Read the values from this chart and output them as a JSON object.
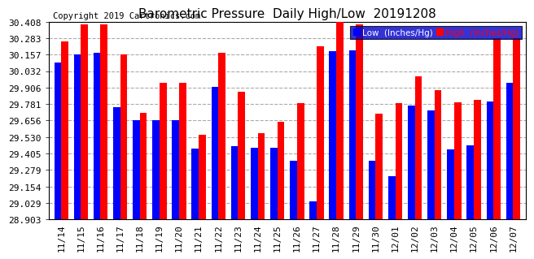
{
  "title": "Barometric Pressure  Daily High/Low  20191208",
  "copyright": "Copyright 2019 Cartronics.com",
  "dates": [
    "11/14",
    "11/15",
    "11/16",
    "11/17",
    "11/18",
    "11/19",
    "11/20",
    "11/21",
    "11/22",
    "11/23",
    "11/24",
    "11/25",
    "11/26",
    "11/27",
    "11/28",
    "11/29",
    "11/30",
    "12/01",
    "12/02",
    "12/03",
    "12/04",
    "12/05",
    "12/06",
    "12/07"
  ],
  "low": [
    30.1,
    30.16,
    30.17,
    29.76,
    29.66,
    29.66,
    29.66,
    29.44,
    29.91,
    29.46,
    29.45,
    29.45,
    29.35,
    29.04,
    30.185,
    30.19,
    29.35,
    29.23,
    29.77,
    29.73,
    29.435,
    29.465,
    29.8,
    29.945
  ],
  "high": [
    30.26,
    30.39,
    30.385,
    30.16,
    29.715,
    29.94,
    29.945,
    29.545,
    30.17,
    29.875,
    29.56,
    29.645,
    29.79,
    30.22,
    30.44,
    30.385,
    29.705,
    29.79,
    29.995,
    29.89,
    29.795,
    29.81,
    30.285,
    30.285
  ],
  "ylim": [
    28.903,
    30.408
  ],
  "yticks": [
    28.903,
    29.029,
    29.154,
    29.279,
    29.405,
    29.53,
    29.656,
    29.781,
    29.906,
    30.032,
    30.157,
    30.283,
    30.408
  ],
  "low_color": "#0000ff",
  "high_color": "#ff0000",
  "bg_color": "#ffffff",
  "grid_color": "#aaaaaa",
  "title_fontsize": 11,
  "tick_fontsize": 8,
  "copyright_fontsize": 7.5,
  "legend_low_label": "Low  (Inches/Hg)",
  "legend_high_label": "High  (Inches/Hg)",
  "bar_width": 0.36
}
